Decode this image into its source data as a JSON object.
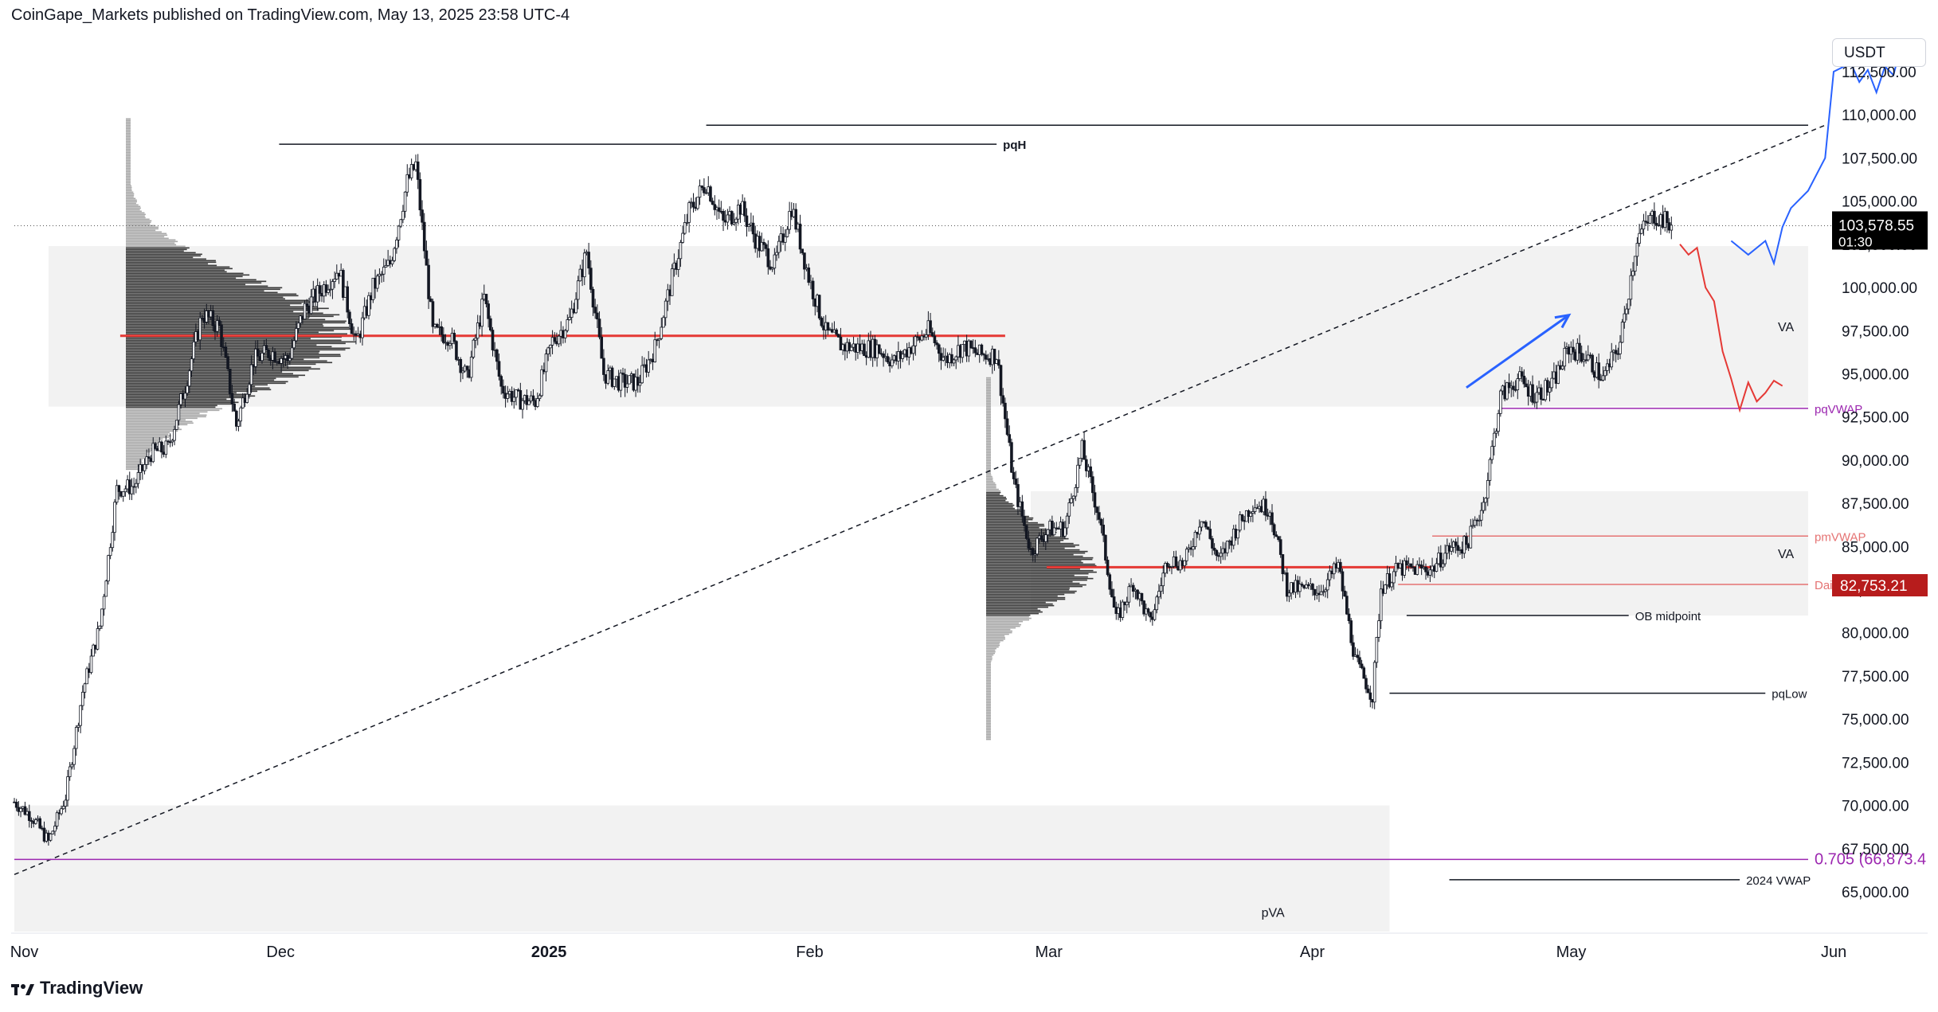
{
  "header": {
    "publisher": "CoinGape_Markets published on TradingView.com, May 13, 2025 23:58 UTC-4"
  },
  "brand": {
    "name": "TradingView"
  },
  "currency": {
    "label": "USDT"
  },
  "chart_data": {
    "type": "candlestick",
    "symbol_quote": "USDT",
    "price_axis": {
      "min": 62500,
      "max": 115000,
      "ticks": [
        "65,000.00",
        "67,500.00",
        "70,000.00",
        "72,500.00",
        "75,000.00",
        "77,500.00",
        "80,000.00",
        "82,500.00",
        "85,000.00",
        "87,500.00",
        "90,000.00",
        "92,500.00",
        "95,000.00",
        "97,500.00",
        "100,000.00",
        "102,500.00",
        "105,000.00",
        "107,500.00",
        "110,000.00",
        "112,500.00"
      ],
      "tick_values": [
        65000,
        67500,
        70000,
        72500,
        75000,
        77500,
        80000,
        82500,
        85000,
        87500,
        90000,
        92500,
        95000,
        97500,
        100000,
        102500,
        105000,
        107500,
        110000,
        112500
      ]
    },
    "time_axis": {
      "labels": [
        {
          "text": "Nov",
          "date": "2024-11-01"
        },
        {
          "text": "Dec",
          "date": "2024-12-01"
        },
        {
          "text": "2025",
          "date": "2025-01-01",
          "bold": true
        },
        {
          "text": "Feb",
          "date": "2025-02-01"
        },
        {
          "text": "Mar",
          "date": "2025-03-01"
        },
        {
          "text": "Apr",
          "date": "2025-04-01"
        },
        {
          "text": "May",
          "date": "2025-05-01"
        },
        {
          "text": "Jun",
          "date": "2025-06-01"
        }
      ],
      "start": "2024-10-31",
      "end": "2025-06-12"
    },
    "price_path": [
      [
        "2024-10-31",
        70200
      ],
      [
        "2024-11-02",
        69400
      ],
      [
        "2024-11-04",
        67900
      ],
      [
        "2024-11-06",
        70500
      ],
      [
        "2024-11-08",
        76600
      ],
      [
        "2024-11-10",
        80400
      ],
      [
        "2024-11-12",
        88300
      ],
      [
        "2024-11-14",
        88500
      ],
      [
        "2024-11-16",
        90400
      ],
      [
        "2024-11-18",
        90700
      ],
      [
        "2024-11-20",
        94300
      ],
      [
        "2024-11-22",
        98500
      ],
      [
        "2024-11-24",
        97700
      ],
      [
        "2024-11-26",
        92000
      ],
      [
        "2024-11-28",
        95800
      ],
      [
        "2024-11-30",
        96300
      ],
      [
        "2024-12-02",
        95800
      ],
      [
        "2024-12-04",
        98800
      ],
      [
        "2024-12-06",
        99900
      ],
      [
        "2024-12-08",
        101100
      ],
      [
        "2024-12-10",
        96700
      ],
      [
        "2024-12-12",
        100000
      ],
      [
        "2024-12-14",
        101400
      ],
      [
        "2024-12-16",
        106100
      ],
      [
        "2024-12-17",
        107100
      ],
      [
        "2024-12-19",
        97400
      ],
      [
        "2024-12-21",
        97200
      ],
      [
        "2024-12-23",
        94700
      ],
      [
        "2024-12-25",
        99400
      ],
      [
        "2024-12-27",
        94200
      ],
      [
        "2024-12-29",
        93500
      ],
      [
        "2024-12-31",
        93400
      ],
      [
        "2025-01-02",
        96900
      ],
      [
        "2025-01-04",
        98100
      ],
      [
        "2025-01-06",
        102100
      ],
      [
        "2025-01-08",
        95000
      ],
      [
        "2025-01-10",
        94500
      ],
      [
        "2025-01-12",
        94500
      ],
      [
        "2025-01-14",
        96500
      ],
      [
        "2025-01-16",
        100500
      ],
      [
        "2025-01-18",
        104400
      ],
      [
        "2025-01-20",
        106100
      ],
      [
        "2025-01-22",
        103700
      ],
      [
        "2025-01-24",
        104700
      ],
      [
        "2025-01-26",
        102600
      ],
      [
        "2025-01-28",
        101300
      ],
      [
        "2025-01-30",
        104700
      ],
      [
        "2025-02-01",
        100600
      ],
      [
        "2025-02-03",
        97400
      ],
      [
        "2025-02-05",
        96600
      ],
      [
        "2025-02-07",
        96500
      ],
      [
        "2025-02-09",
        96500
      ],
      [
        "2025-02-11",
        95700
      ],
      [
        "2025-02-13",
        96600
      ],
      [
        "2025-02-15",
        97500
      ],
      [
        "2025-02-17",
        95800
      ],
      [
        "2025-02-19",
        96600
      ],
      [
        "2025-02-21",
        96100
      ],
      [
        "2025-02-23",
        96100
      ],
      [
        "2025-02-25",
        88700
      ],
      [
        "2025-02-27",
        84700
      ],
      [
        "2025-03-01",
        86000
      ],
      [
        "2025-03-03",
        86100
      ],
      [
        "2025-03-05",
        90600
      ],
      [
        "2025-03-07",
        86700
      ],
      [
        "2025-03-09",
        80700
      ],
      [
        "2025-03-11",
        82900
      ],
      [
        "2025-03-13",
        80500
      ],
      [
        "2025-03-15",
        84300
      ],
      [
        "2025-03-17",
        84000
      ],
      [
        "2025-03-19",
        86800
      ],
      [
        "2025-03-21",
        84100
      ],
      [
        "2025-03-23",
        86000
      ],
      [
        "2025-03-25",
        87500
      ],
      [
        "2025-03-27",
        87200
      ],
      [
        "2025-03-29",
        82600
      ],
      [
        "2025-03-31",
        82500
      ],
      [
        "2025-04-02",
        82500
      ],
      [
        "2025-04-04",
        83900
      ],
      [
        "2025-04-06",
        78400
      ],
      [
        "2025-04-08",
        76300
      ],
      [
        "2025-04-09",
        82600
      ],
      [
        "2025-04-11",
        83700
      ],
      [
        "2025-04-13",
        83700
      ],
      [
        "2025-04-15",
        83700
      ],
      [
        "2025-04-17",
        84900
      ],
      [
        "2025-04-19",
        85100
      ],
      [
        "2025-04-21",
        87500
      ],
      [
        "2025-04-23",
        93700
      ],
      [
        "2025-04-25",
        94700
      ],
      [
        "2025-04-27",
        93800
      ],
      [
        "2025-04-29",
        94300
      ],
      [
        "2025-05-01",
        96500
      ],
      [
        "2025-05-03",
        96000
      ],
      [
        "2025-05-05",
        94700
      ],
      [
        "2025-05-07",
        96800
      ],
      [
        "2025-05-09",
        102900
      ],
      [
        "2025-05-11",
        104200
      ],
      [
        "2025-05-13",
        103578
      ]
    ],
    "last_price": {
      "value": 103578.55,
      "label": "103,578.55",
      "countdown": "01:30"
    },
    "price_labels": [
      {
        "text": "82,753.21",
        "value": 82753.21,
        "color": "#c2185b"
      }
    ],
    "horizontal_lines": [
      {
        "label": "pqH",
        "value": 108300,
        "from": "2024-12-01",
        "to": "2025-02-23",
        "color": "#131722"
      },
      {
        "label": "",
        "value": 109400,
        "from": "2025-01-20",
        "to": "2025-05-31",
        "color": "#131722"
      },
      {
        "label": "pqVWAP",
        "value": 93000,
        "from": "2025-04-23",
        "to": "2025-06-05",
        "color": "#9c27b0"
      },
      {
        "label": "pmVWAP",
        "value": 85600,
        "from": "2025-04-15",
        "to": "2025-05-31",
        "color": "#e57373"
      },
      {
        "label": "Daily OB",
        "value": 82800,
        "from": "2025-04-11",
        "to": "2025-06-05",
        "color": "#e57373"
      },
      {
        "label": "OB midpoint",
        "value": 81000,
        "from": "2025-04-12",
        "to": "2025-05-08",
        "color": "#131722"
      },
      {
        "label": "pqLow",
        "value": 76500,
        "from": "2025-04-10",
        "to": "2025-05-24",
        "color": "#131722"
      },
      {
        "label": "2024 VWAP",
        "value": 65700,
        "from": "2025-04-17",
        "to": "2025-05-21",
        "color": "#131722"
      },
      {
        "label": "0.705 (66,873.4",
        "value": 66873.4,
        "from": "2024-10-31",
        "to": "2025-06-05",
        "color": "#9c27b0"
      }
    ],
    "value_areas": [
      {
        "label": "VA",
        "from": "2024-11-04",
        "to": "2025-06-05",
        "top": 102400,
        "bottom": 93100,
        "poc": 97200
      },
      {
        "label": "VA",
        "from": "2025-02-27",
        "to": "2025-06-05",
        "top": 88200,
        "bottom": 81000,
        "poc": 83800
      },
      {
        "label": "pVA",
        "from": "2024-10-31",
        "to": "2025-04-10",
        "top": 70000,
        "bottom": 62500
      }
    ],
    "trendline": {
      "from": [
        "2024-10-31",
        66000
      ],
      "to": [
        "2025-05-31",
        109400
      ],
      "style": "dashed"
    },
    "arrow": {
      "from": [
        "2025-04-19",
        94200
      ],
      "to": [
        "2025-05-01",
        98400
      ],
      "color": "#2962ff"
    },
    "projection_bullish": [
      [
        "2025-05-20",
        102700
      ],
      [
        "2025-05-22",
        101900
      ],
      [
        "2025-05-24",
        102700
      ],
      [
        "2025-05-25",
        101400
      ],
      [
        "2025-05-26",
        103500
      ],
      [
        "2025-05-27",
        104600
      ],
      [
        "2025-05-29",
        105600
      ],
      [
        "2025-05-31",
        107500
      ],
      [
        "2025-06-01",
        112500
      ],
      [
        "2025-06-03",
        113000
      ],
      [
        "2025-06-04",
        111900
      ],
      [
        "2025-06-05",
        112600
      ],
      [
        "2025-06-06",
        111300
      ],
      [
        "2025-06-07",
        112800
      ],
      [
        "2025-06-08",
        112300
      ],
      [
        "2025-06-09",
        114200
      ]
    ],
    "projection_bearish": [
      [
        "2025-05-14",
        102500
      ],
      [
        "2025-05-15",
        101900
      ],
      [
        "2025-05-16",
        102300
      ],
      [
        "2025-05-17",
        100000
      ],
      [
        "2025-05-18",
        99200
      ],
      [
        "2025-05-19",
        96300
      ],
      [
        "2025-05-20",
        94700
      ],
      [
        "2025-05-21",
        92900
      ],
      [
        "2025-05-22",
        94500
      ],
      [
        "2025-05-23",
        93400
      ],
      [
        "2025-05-24",
        93900
      ],
      [
        "2025-05-25",
        94600
      ],
      [
        "2025-05-26",
        94300
      ]
    ],
    "colors": {
      "candles": "#131722",
      "poc": "#e53935",
      "va_fill": "#f2f2f2",
      "bullish": "#2962ff",
      "bearish": "#e53935",
      "last_price_bg": "#000000",
      "ob_label_bg": "#b71c1c"
    },
    "grid": false
  }
}
